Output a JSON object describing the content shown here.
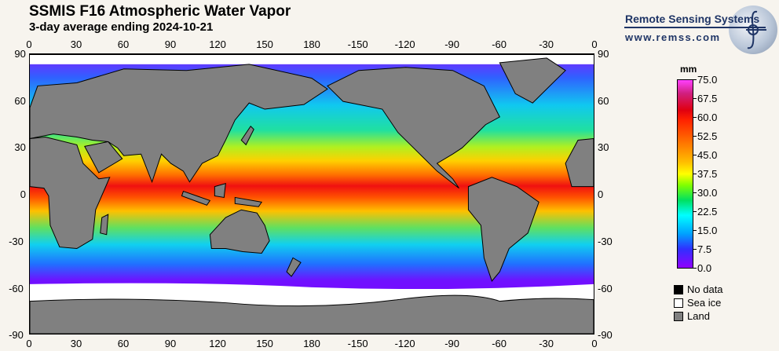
{
  "header": {
    "title": "SSMIS F16 Atmospheric Water Vapor",
    "subtitle": "3-day average ending 2024-10-21"
  },
  "logo": {
    "name": "Remote Sensing Systems",
    "url": "www.remss.com"
  },
  "axes": {
    "longitude_labels": [
      "0",
      "30",
      "60",
      "90",
      "120",
      "150",
      "180",
      "-150",
      "-120",
      "-90",
      "-60",
      "-30",
      "0"
    ],
    "latitude_labels": [
      "90",
      "60",
      "30",
      "0",
      "-30",
      "-60",
      "-90"
    ]
  },
  "colorbar": {
    "unit": "mm",
    "labels": [
      "75.0",
      "67.5",
      "60.0",
      "52.5",
      "45.0",
      "37.5",
      "30.0",
      "22.5",
      "15.0",
      "7.5",
      "0.0"
    ],
    "range": [
      0,
      75
    ]
  },
  "legend": [
    {
      "label": "No data",
      "color": "#000000"
    },
    {
      "label": "Sea ice",
      "color": "#ffffff"
    },
    {
      "label": "Land",
      "color": "#808080"
    }
  ]
}
